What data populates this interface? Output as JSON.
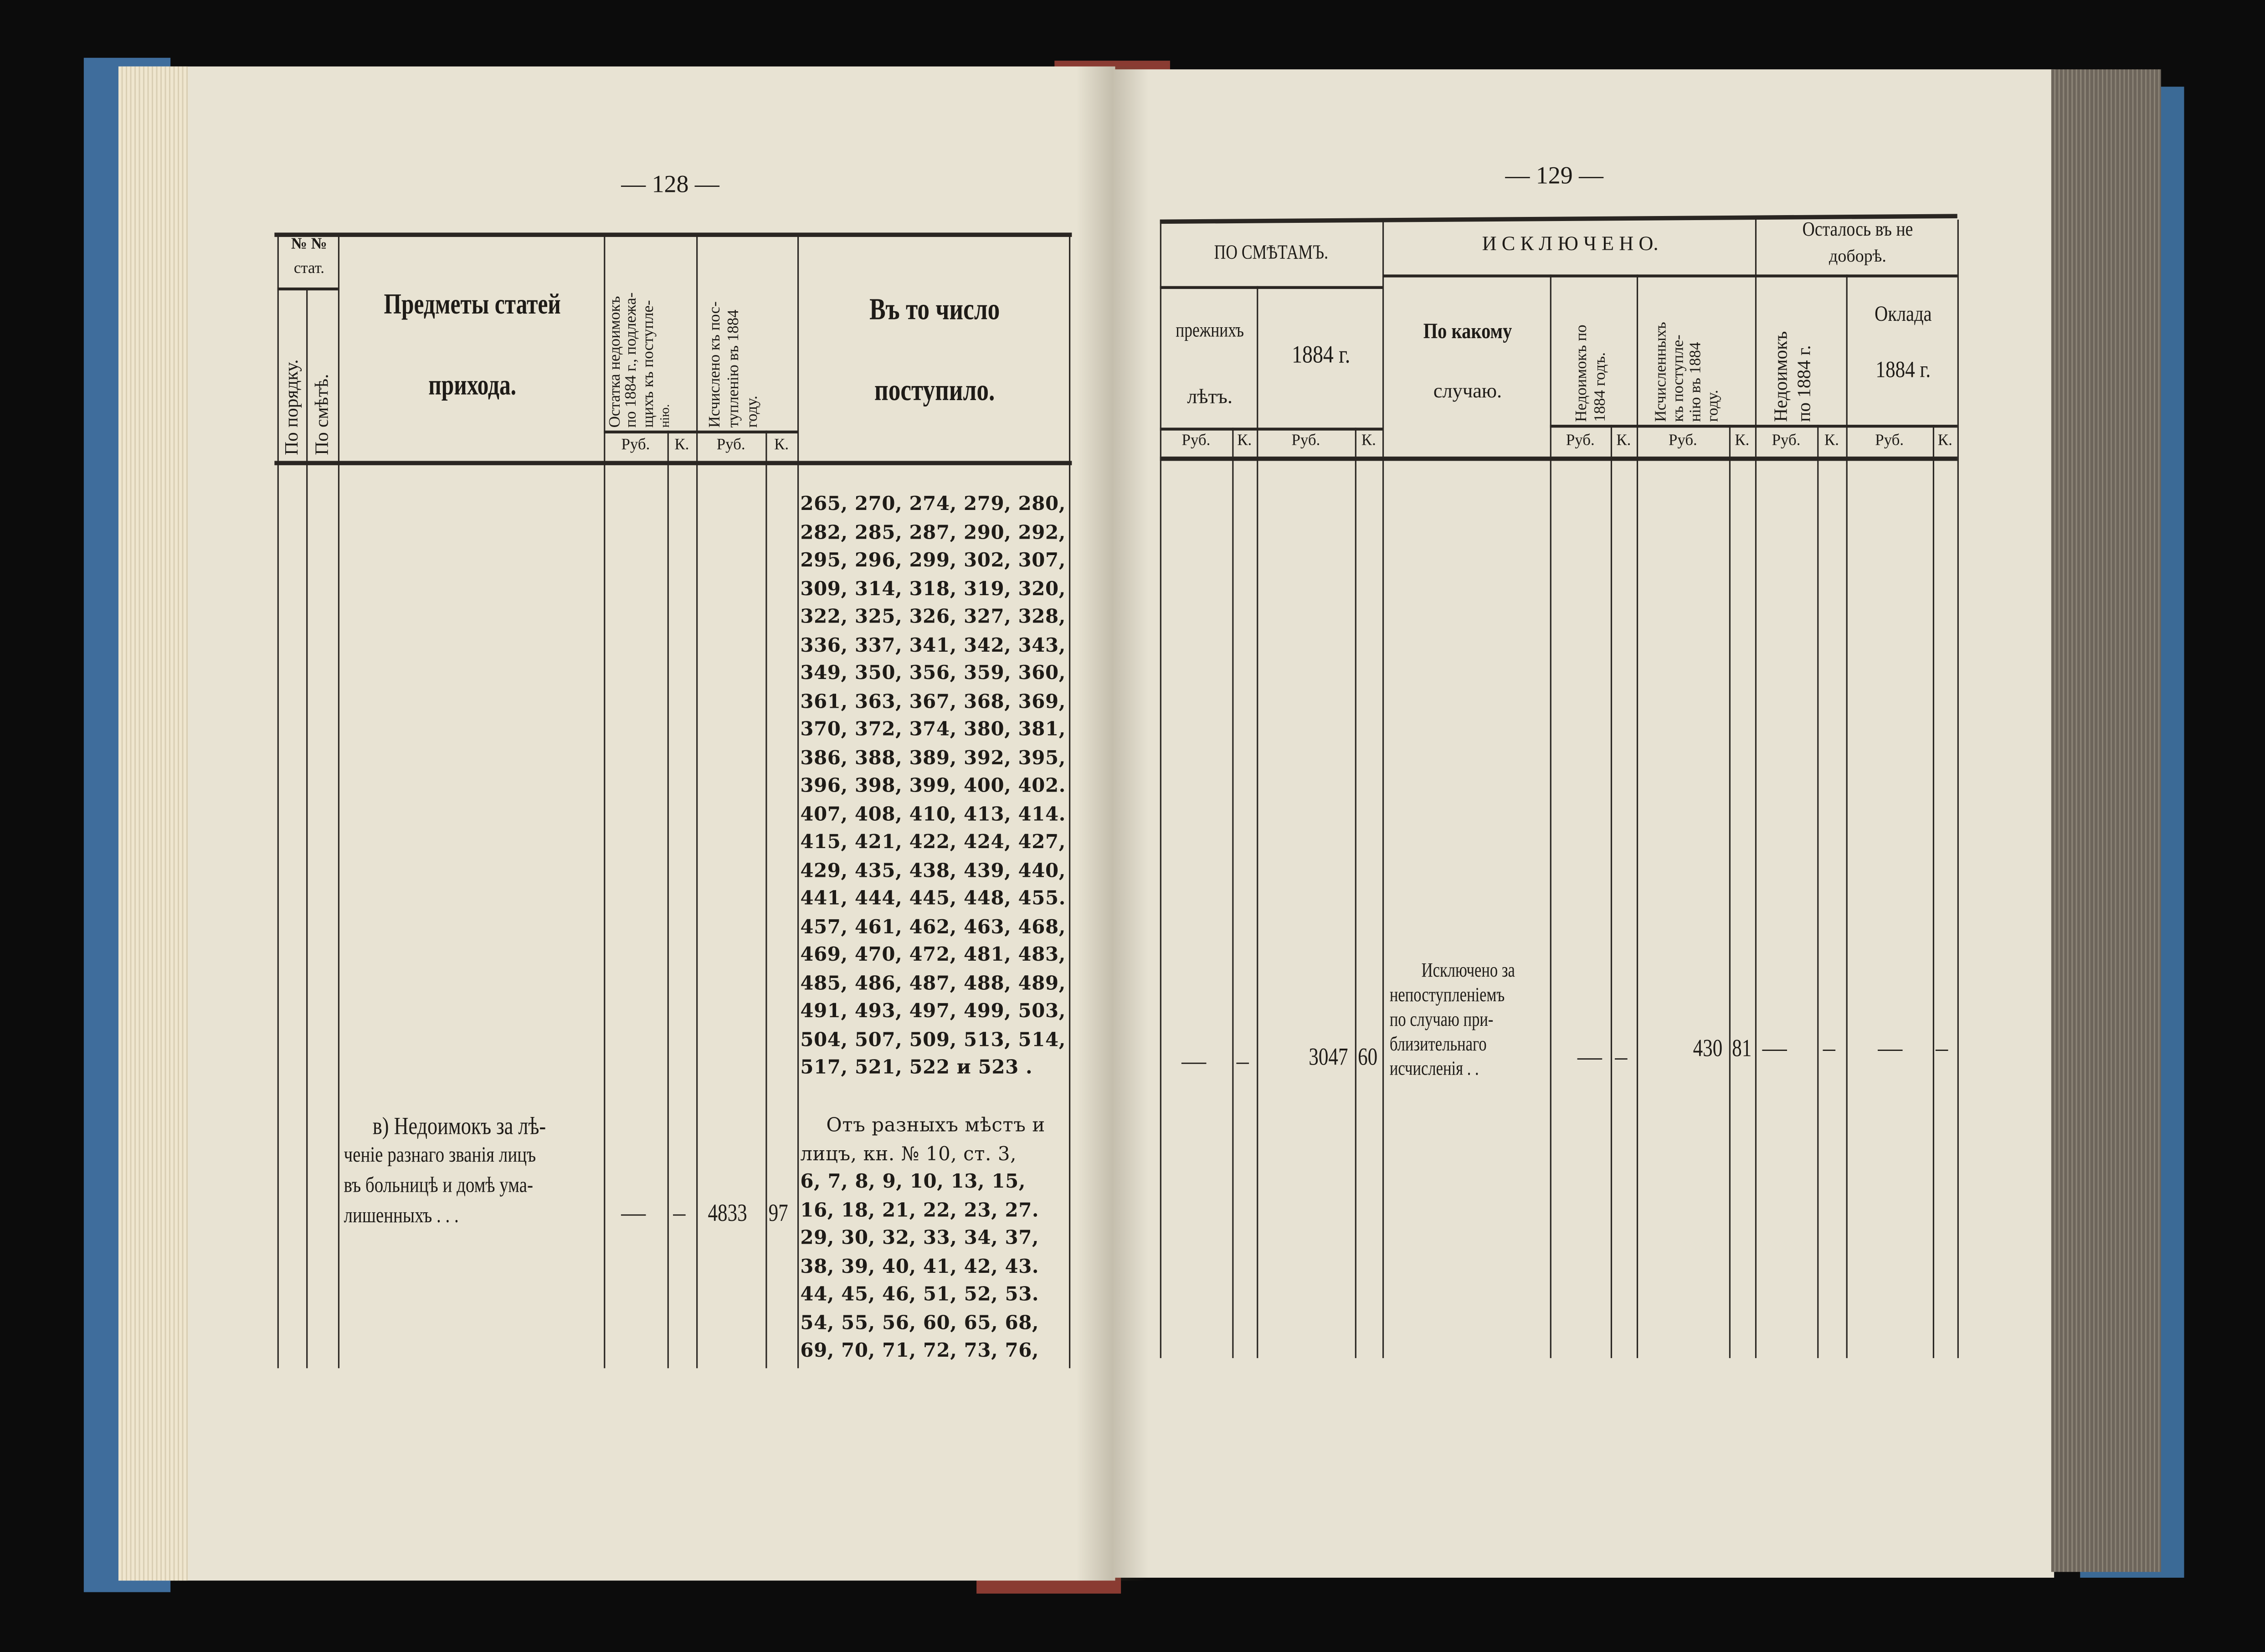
{
  "left_page": {
    "page_number": "— 128 —",
    "header": {
      "nn": "№ №",
      "stat": "стат.",
      "by_order": "По порядку.",
      "by_estimate": "По смѣтѣ.",
      "subjects_line1": "Предметы статей",
      "subjects_line2": "прихода.",
      "arrears_l1": "Остатка недоимокъ",
      "arrears_l2": "по 1884 г., подлежа-",
      "arrears_l3": "щихъ къ поступле-",
      "arrears_l4": "нію.",
      "computed_l1": "Исчислено къ пос-",
      "computed_l2": "тупленію въ 1884",
      "computed_l3": "году.",
      "received_line1": "Въ то число",
      "received_line2": "поступило.",
      "rub": "Руб.",
      "kop": "К."
    },
    "received_numbers": [
      "265, 270, 274, 279, 280,",
      "282, 285, 287, 290, 292,",
      "295, 296, 299, 302, 307,",
      "309, 314, 318, 319, 320,",
      "322, 325, 326, 327, 328,",
      "336, 337, 341, 342, 343,",
      "349, 350, 356, 359, 360,",
      "361, 363, 367, 368, 369,",
      "370, 372, 374, 380, 381,",
      "386, 388, 389, 392, 395,",
      "396, 398, 399, 400, 402.",
      "407, 408, 410, 413, 414.",
      "415, 421, 422, 424, 427,",
      "429, 435, 438, 439, 440,",
      "441, 444, 445, 448, 455.",
      "457, 461, 462, 463, 468,",
      "469, 470, 472, 481, 483,",
      "485, 486, 487, 488, 489,",
      "491, 493, 497, 499, 503,",
      "504, 507, 509, 513, 514,",
      "517, 521, 522 и 523   ."
    ],
    "item_v": {
      "lines": [
        "в) Недоимокъ за лѣ-",
        "ченіе разнаго званія лицъ",
        "въ больницѣ и домѣ ума-",
        "лишенныхъ .     .     ."
      ],
      "arrears_rub": "—",
      "arrears_kop": "–",
      "computed_rub": "4833",
      "computed_kop": "97",
      "received_lines": [
        "Отъ разныхъ мѣстъ и",
        "лицъ, кн. № 10, ст.  3,",
        "6, 7, 8, 9, 10,  13, 15,",
        "16, 18, 21, 22, 23, 27.",
        "29, 30, 32, 33, 34, 37,",
        "38, 39, 40, 41, 42, 43.",
        "44, 45, 46, 51, 52, 53.",
        "54, 55, 56, 60, 65, 68,",
        "69, 70, 71, 72, 73, 76,"
      ]
    }
  },
  "right_page": {
    "page_number": "— 129 —",
    "header": {
      "by_estimates": "ПО СМѢТАМЪ.",
      "excluded": "И С К Л Ю Ч Е Н О.",
      "remaining_l1": "Осталось въ не",
      "remaining_l2": "доборѣ.",
      "prev_years_l1": "прежнихъ",
      "prev_years_l2": "лѣтъ.",
      "year_1884": "1884 г.",
      "by_what_l1": "По какому",
      "by_what_l2": "случаю.",
      "arrears_1884_l1": "Недоимокъ по",
      "arrears_1884_l2": "1884 годъ.",
      "computed_l1": "Исчисленныхъ",
      "computed_l2": "къ поступле-",
      "computed_l3": "нію въ 1884",
      "computed_l4": "году.",
      "rem_arrears_l1": "Недоимокъ",
      "rem_arrears_l2": "по 1884 г.",
      "salary_l1": "Оклада",
      "salary_l2": "1884 г.",
      "rub": "Руб.",
      "kop": "К."
    },
    "row": {
      "prev_rub": "—",
      "prev_kop": "–",
      "y1884_rub": "3047",
      "y1884_kop": "60",
      "reason_lines": [
        "Исключено за",
        "непоступленіемъ",
        "по случаю при-",
        "близительнаго",
        "исчисленія  .  ."
      ],
      "arrears_rub": "—",
      "arrears_kop": "–",
      "computed_rub": "430",
      "computed_kop": "81",
      "rem_arrears_rub": "—",
      "rem_arrears_kop": "–",
      "salary_rub": "—",
      "salary_kop": "–"
    }
  },
  "colors": {
    "paper": "#e8e3d3",
    "ink": "#1e1b17",
    "cover": "#3f6d9c",
    "spine": "#8a3b32",
    "background": "#0c0c0c"
  }
}
